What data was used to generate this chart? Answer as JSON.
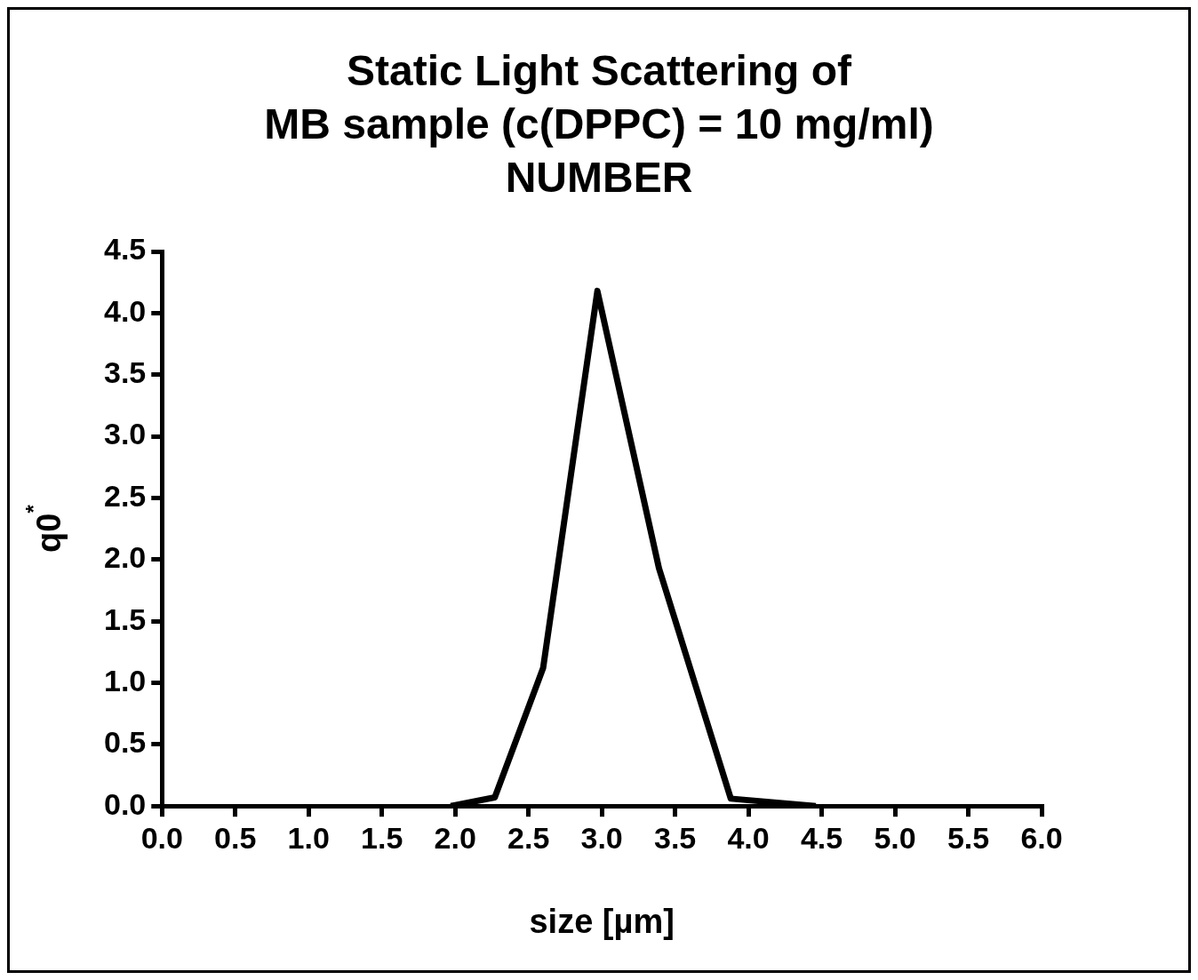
{
  "chart_data": {
    "type": "line",
    "title": "Static Light Scattering of\nMB sample (c(DPPC) = 10 mg/ml)\nNUMBER",
    "xlabel": "size [µm]",
    "ylabel": "q0$^{*}$",
    "x": [
      1.97,
      2.27,
      2.6,
      2.97,
      3.39,
      3.88,
      4.46
    ],
    "series": [
      {
        "color": "#000000",
        "values": [
          0,
          0.07,
          1.12,
          4.18,
          1.93,
          0.06,
          0
        ]
      }
    ],
    "xlim": [
      0,
      6
    ],
    "xticks": [
      {
        "value": 0,
        "label": "0.0"
      },
      {
        "value": 0.5,
        "label": "0.5"
      },
      {
        "value": 1,
        "label": "1.0"
      },
      {
        "value": 1.5,
        "label": "1.5"
      },
      {
        "value": 2,
        "label": "2.0"
      },
      {
        "value": 2.5,
        "label": "2.5"
      },
      {
        "value": 3,
        "label": "3.0"
      },
      {
        "value": 3.5,
        "label": "3.5"
      },
      {
        "value": 4,
        "label": "4.0"
      },
      {
        "value": 4.5,
        "label": "4.5"
      },
      {
        "value": 5,
        "label": "5.0"
      },
      {
        "value": 5.5,
        "label": "5.5"
      },
      {
        "value": 6,
        "label": "6.0"
      }
    ],
    "ylim": [
      0,
      4.5
    ],
    "yticks": [
      {
        "value": 0,
        "label": "0.0"
      },
      {
        "value": 0.5,
        "label": "0.5"
      },
      {
        "value": 1,
        "label": "1.0"
      },
      {
        "value": 1.5,
        "label": "1.5"
      },
      {
        "value": 2,
        "label": "2.0"
      },
      {
        "value": 2.5,
        "label": "2.5"
      },
      {
        "value": 3,
        "label": "3.0"
      },
      {
        "value": 3.5,
        "label": "3.5"
      },
      {
        "value": 4,
        "label": "4.0"
      },
      {
        "value": 4.5,
        "label": "4.5"
      }
    ],
    "grid": false,
    "legend": false,
    "marker": "none",
    "line_style": "solid"
  }
}
